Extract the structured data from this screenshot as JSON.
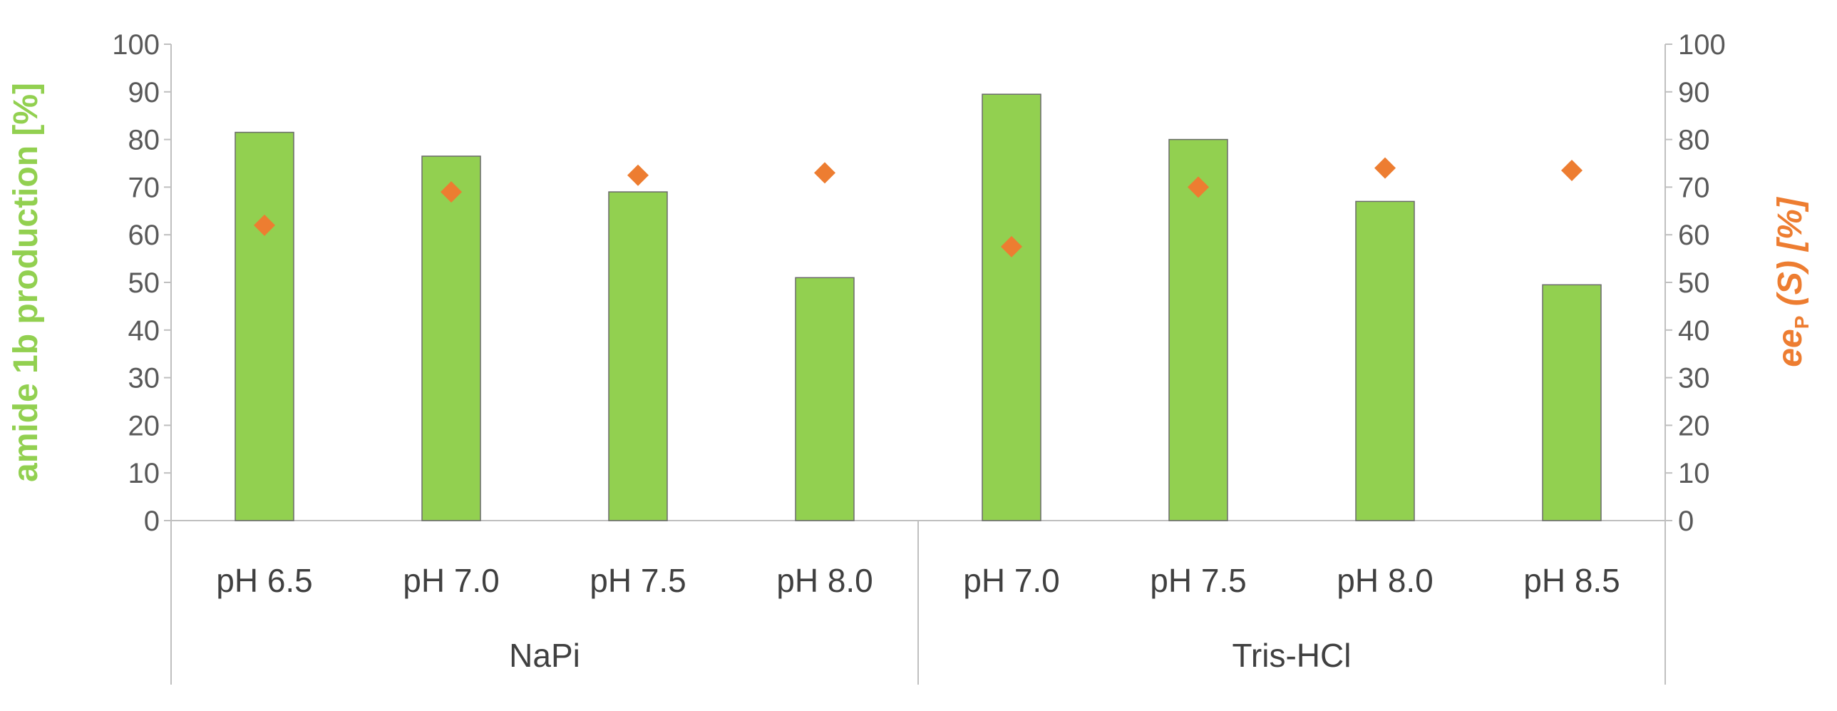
{
  "chart_data": {
    "type": "bar",
    "title": "",
    "groups": [
      {
        "label": "NaPi",
        "categories": [
          "pH 6.5",
          "pH 7.0",
          "pH 7.5",
          "pH 8.0"
        ]
      },
      {
        "label": "Tris-HCl",
        "categories": [
          "pH 7.0",
          "pH 7.5",
          "pH 8.0",
          "pH 8.5"
        ]
      }
    ],
    "categories": [
      "pH 6.5",
      "pH 7.0",
      "pH 7.5",
      "pH 8.0",
      "pH 7.0",
      "pH 7.5",
      "pH 8.0",
      "pH 8.5"
    ],
    "series": [
      {
        "type": "bar",
        "axis": "left",
        "values": [
          81.5,
          76.5,
          69,
          51,
          89.5,
          80,
          67,
          49.5
        ]
      },
      {
        "type": "scatter",
        "axis": "right",
        "marker": "diamond",
        "values": [
          62,
          69,
          72.5,
          73,
          57.5,
          70,
          74,
          73.5
        ]
      }
    ],
    "y_left": {
      "label": "amide 1b production [%]",
      "ylim": [
        0,
        100
      ],
      "ticks": [
        "0",
        "10",
        "20",
        "30",
        "40",
        "50",
        "60",
        "70",
        "80",
        "90",
        "100"
      ]
    },
    "y_right": {
      "label_parts": [
        "ee",
        "P",
        " (S) [%]"
      ],
      "ylim": [
        0,
        100
      ],
      "ticks": [
        "0",
        "10",
        "20",
        "30",
        "40",
        "50",
        "60",
        "70",
        "80",
        "90",
        "100"
      ]
    },
    "grid": false,
    "colors": {
      "bar": "#92d050",
      "marker": "#ed7d31",
      "left_label": "#92d050",
      "right_label": "#ed7d31"
    }
  }
}
